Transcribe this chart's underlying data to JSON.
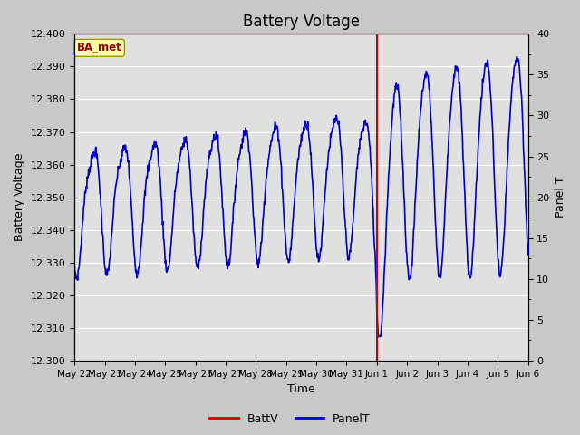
{
  "title": "Battery Voltage",
  "xlabel": "Time",
  "ylabel_left": "Battery Voltage",
  "ylabel_right": "Panel T",
  "fig_bg_color": "#c8c8c8",
  "plot_bg_color": "#e0e0e0",
  "left_ylim": [
    12.3,
    12.4
  ],
  "right_ylim": [
    0,
    40
  ],
  "left_yticks": [
    12.3,
    12.31,
    12.32,
    12.33,
    12.34,
    12.35,
    12.36,
    12.37,
    12.38,
    12.39,
    12.4
  ],
  "right_yticks": [
    0,
    5,
    10,
    15,
    20,
    25,
    30,
    35,
    40
  ],
  "hline_value": 12.4,
  "hline_color": "#cc0000",
  "vline_x": 10.0,
  "vline_color": "#cc0000",
  "ba_met_label": "BA_met",
  "ba_met_bg": "#ffffaa",
  "ba_met_fg": "#990000",
  "legend_battv_color": "#cc0000",
  "legend_panelt_color": "#0000cc",
  "line_color": "#0000cc",
  "line_width": 1.2,
  "xtick_labels": [
    "May 22",
    "May 23",
    "May 24",
    "May 25",
    "May 26",
    "May 27",
    "May 28",
    "May 29",
    "May 30",
    "May 31",
    "Jun 1",
    "Jun 2",
    "Jun 3",
    "Jun 4",
    "Jun 5",
    "Jun 6"
  ],
  "xlim": [
    0,
    15
  ]
}
